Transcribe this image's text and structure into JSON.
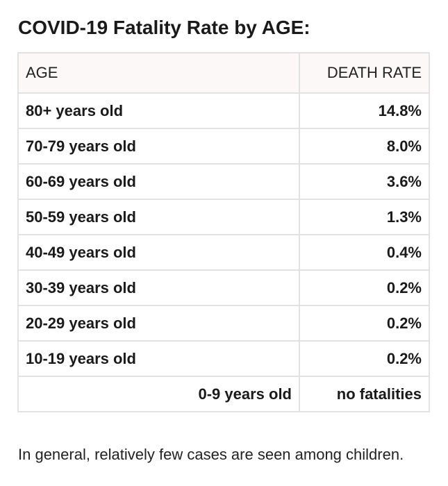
{
  "title": "COVID-19 Fatality Rate by AGE:",
  "table": {
    "headers": {
      "age": "AGE",
      "rate": "DEATH RATE"
    },
    "rows": [
      {
        "age": "80+ years old",
        "rate": "14.8%"
      },
      {
        "age": "70-79 years old",
        "rate": "8.0%"
      },
      {
        "age": "60-69 years old",
        "rate": "3.6%"
      },
      {
        "age": "50-59 years old",
        "rate": "1.3%"
      },
      {
        "age": "40-49 years old",
        "rate": "0.4%"
      },
      {
        "age": "30-39 years old",
        "rate": "0.2%"
      },
      {
        "age": "20-29 years old",
        "rate": "0.2%"
      },
      {
        "age": "10-19 years old",
        "rate": "0.2%"
      },
      {
        "age": "0-9 years old",
        "rate": "no fatalities"
      }
    ]
  },
  "note": "In general, relatively few cases are seen among children."
}
